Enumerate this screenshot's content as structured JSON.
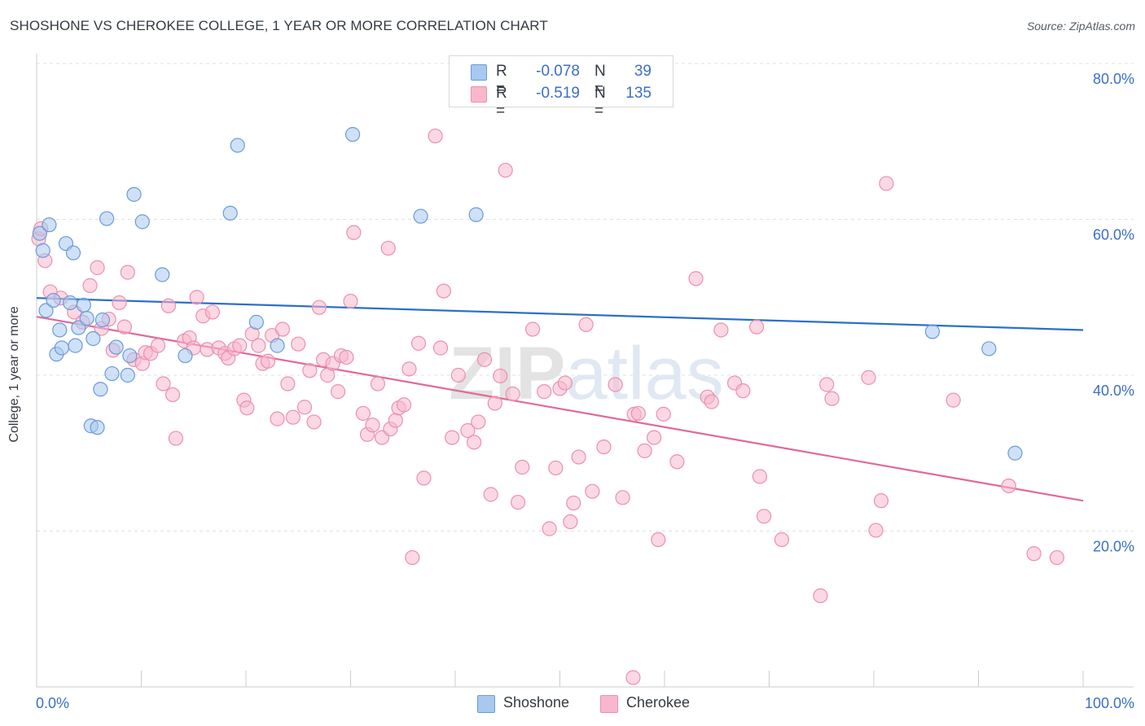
{
  "title": "SHOSHONE VS CHEROKEE COLLEGE, 1 YEAR OR MORE CORRELATION CHART",
  "source": "Source: ZipAtlas.com",
  "colors": {
    "shoshone_fill": "#a8c8f0",
    "shoshone_stroke": "#6a9bd8",
    "shoshone_line": "#2c6fcb",
    "cherokee_fill": "#f7b8cc",
    "cherokee_stroke": "#ec8fae",
    "cherokee_line": "#e0699a",
    "axis_text": "#3a6fc4",
    "grid": "#dde1e6"
  },
  "legend": {
    "shoshone": {
      "r_label": "R =",
      "r_value": "-0.078",
      "n_label": "N =",
      "n_value": "39"
    },
    "cherokee": {
      "r_label": "R =",
      "r_value": "-0.519",
      "n_label": "N =",
      "n_value": "135"
    }
  },
  "bottom_legend": {
    "shoshone": "Shoshone",
    "cherokee": "Cherokee"
  },
  "chart_data": {
    "type": "scatter",
    "title": "SHOSHONE VS CHEROKEE COLLEGE, 1 YEAR OR MORE CORRELATION CHART",
    "xlabel": "",
    "ylabel": "College, 1 year or more",
    "xlim": [
      0,
      100
    ],
    "ylim": [
      0,
      80
    ],
    "x_ticks": [
      "0.0%",
      "100.0%"
    ],
    "y_ticks": [
      "20.0%",
      "40.0%",
      "60.0%",
      "80.0%"
    ],
    "grid": true,
    "legend_placement": "top-center",
    "watermark": "ZIPatlas",
    "series": [
      {
        "name": "Shoshone",
        "trend": {
          "x": [
            0,
            100
          ],
          "y": [
            49.9,
            45.8
          ]
        },
        "points": [
          [
            0.3,
            58.2
          ],
          [
            0.6,
            56.0
          ],
          [
            0.9,
            48.3
          ],
          [
            1.2,
            59.3
          ],
          [
            1.6,
            49.6
          ],
          [
            1.9,
            42.7
          ],
          [
            2.2,
            45.8
          ],
          [
            2.4,
            43.5
          ],
          [
            2.8,
            56.9
          ],
          [
            3.2,
            49.3
          ],
          [
            3.5,
            55.7
          ],
          [
            3.7,
            43.8
          ],
          [
            4.0,
            46.1
          ],
          [
            4.5,
            49.0
          ],
          [
            4.8,
            47.3
          ],
          [
            5.2,
            33.5
          ],
          [
            5.4,
            44.7
          ],
          [
            5.8,
            33.3
          ],
          [
            6.1,
            38.2
          ],
          [
            6.3,
            47.1
          ],
          [
            6.7,
            60.1
          ],
          [
            7.2,
            40.2
          ],
          [
            7.6,
            43.6
          ],
          [
            8.7,
            40.0
          ],
          [
            8.9,
            42.5
          ],
          [
            9.3,
            63.2
          ],
          [
            10.1,
            59.7
          ],
          [
            12.0,
            52.9
          ],
          [
            14.2,
            42.5
          ],
          [
            18.5,
            60.8
          ],
          [
            19.2,
            69.5
          ],
          [
            21.0,
            46.8
          ],
          [
            23.0,
            43.8
          ],
          [
            30.2,
            70.9
          ],
          [
            36.7,
            60.4
          ],
          [
            42.0,
            60.6
          ],
          [
            85.6,
            45.6
          ],
          [
            91.0,
            43.4
          ],
          [
            93.5,
            30.0
          ]
        ]
      },
      {
        "name": "Cherokee",
        "trend": {
          "x": [
            0,
            100
          ],
          "y": [
            47.5,
            23.9
          ]
        },
        "points": [
          [
            0.2,
            57.5
          ],
          [
            0.8,
            54.7
          ],
          [
            1.3,
            50.7
          ],
          [
            2.3,
            49.9
          ],
          [
            3.6,
            48.1
          ],
          [
            4.4,
            46.8
          ],
          [
            5.1,
            51.5
          ],
          [
            5.8,
            53.8
          ],
          [
            6.2,
            46.0
          ],
          [
            6.9,
            47.2
          ],
          [
            7.3,
            43.2
          ],
          [
            7.9,
            49.3
          ],
          [
            8.4,
            46.2
          ],
          [
            8.7,
            53.2
          ],
          [
            9.3,
            42.0
          ],
          [
            10.1,
            41.5
          ],
          [
            10.4,
            42.9
          ],
          [
            10.9,
            42.8
          ],
          [
            11.6,
            43.8
          ],
          [
            12.1,
            38.9
          ],
          [
            12.6,
            48.9
          ],
          [
            13.0,
            37.5
          ],
          [
            13.3,
            31.9
          ],
          [
            14.1,
            44.4
          ],
          [
            14.6,
            44.8
          ],
          [
            15.0,
            43.5
          ],
          [
            15.3,
            50.0
          ],
          [
            15.9,
            47.6
          ],
          [
            16.3,
            43.3
          ],
          [
            16.8,
            48.1
          ],
          [
            17.4,
            43.5
          ],
          [
            18.0,
            42.8
          ],
          [
            18.3,
            42.2
          ],
          [
            18.9,
            43.4
          ],
          [
            19.4,
            43.8
          ],
          [
            19.8,
            36.8
          ],
          [
            20.1,
            35.8
          ],
          [
            20.6,
            45.3
          ],
          [
            21.2,
            43.8
          ],
          [
            21.6,
            41.5
          ],
          [
            22.1,
            41.8
          ],
          [
            22.5,
            45.1
          ],
          [
            23.0,
            34.4
          ],
          [
            23.5,
            45.9
          ],
          [
            24.0,
            38.9
          ],
          [
            24.5,
            34.6
          ],
          [
            25.0,
            44.0
          ],
          [
            25.6,
            35.9
          ],
          [
            26.1,
            40.6
          ],
          [
            26.5,
            34.0
          ],
          [
            27.0,
            48.7
          ],
          [
            27.4,
            42.0
          ],
          [
            27.8,
            40.0
          ],
          [
            28.3,
            41.5
          ],
          [
            28.8,
            37.9
          ],
          [
            29.1,
            42.5
          ],
          [
            29.6,
            42.3
          ],
          [
            30.0,
            49.5
          ],
          [
            30.3,
            58.3
          ],
          [
            31.2,
            35.1
          ],
          [
            31.6,
            32.4
          ],
          [
            32.1,
            33.6
          ],
          [
            32.6,
            38.9
          ],
          [
            33.0,
            32.0
          ],
          [
            33.6,
            56.3
          ],
          [
            33.8,
            33.1
          ],
          [
            34.3,
            34.2
          ],
          [
            34.6,
            35.8
          ],
          [
            35.1,
            36.2
          ],
          [
            35.6,
            40.8
          ],
          [
            35.9,
            16.6
          ],
          [
            36.5,
            44.1
          ],
          [
            37.0,
            26.8
          ],
          [
            38.1,
            70.7
          ],
          [
            38.6,
            43.5
          ],
          [
            38.9,
            50.8
          ],
          [
            39.7,
            32.0
          ],
          [
            40.3,
            40.0
          ],
          [
            41.2,
            32.9
          ],
          [
            41.8,
            31.4
          ],
          [
            42.2,
            34.0
          ],
          [
            42.8,
            42.0
          ],
          [
            43.4,
            24.7
          ],
          [
            43.8,
            36.4
          ],
          [
            44.3,
            39.9
          ],
          [
            44.8,
            66.3
          ],
          [
            45.5,
            37.6
          ],
          [
            46.0,
            23.7
          ],
          [
            46.4,
            28.2
          ],
          [
            47.4,
            45.9
          ],
          [
            48.5,
            37.9
          ],
          [
            49.0,
            20.3
          ],
          [
            49.6,
            28.1
          ],
          [
            50.0,
            38.3
          ],
          [
            50.5,
            39.0
          ],
          [
            51.0,
            21.2
          ],
          [
            51.3,
            23.6
          ],
          [
            51.8,
            29.5
          ],
          [
            52.5,
            46.5
          ],
          [
            53.1,
            25.1
          ],
          [
            54.2,
            30.8
          ],
          [
            55.3,
            38.8
          ],
          [
            56.0,
            24.3
          ],
          [
            57.1,
            35.0
          ],
          [
            57.5,
            35.1
          ],
          [
            58.1,
            30.3
          ],
          [
            59.0,
            32.0
          ],
          [
            59.4,
            18.9
          ],
          [
            59.9,
            35.0
          ],
          [
            61.2,
            28.9
          ],
          [
            63.0,
            52.4
          ],
          [
            64.1,
            37.2
          ],
          [
            64.5,
            36.6
          ],
          [
            65.4,
            45.8
          ],
          [
            66.7,
            39.0
          ],
          [
            67.5,
            38.0
          ],
          [
            68.8,
            46.2
          ],
          [
            69.1,
            27.0
          ],
          [
            69.5,
            21.9
          ],
          [
            71.2,
            18.9
          ],
          [
            74.9,
            11.7
          ],
          [
            75.5,
            38.8
          ],
          [
            76.0,
            37.0
          ],
          [
            79.5,
            39.7
          ],
          [
            80.2,
            20.1
          ],
          [
            80.7,
            23.9
          ],
          [
            81.2,
            64.6
          ],
          [
            87.6,
            36.8
          ],
          [
            92.9,
            25.8
          ],
          [
            95.3,
            17.1
          ],
          [
            97.5,
            16.6
          ],
          [
            57.0,
            1.2
          ],
          [
            0.4,
            58.8
          ]
        ]
      }
    ]
  }
}
